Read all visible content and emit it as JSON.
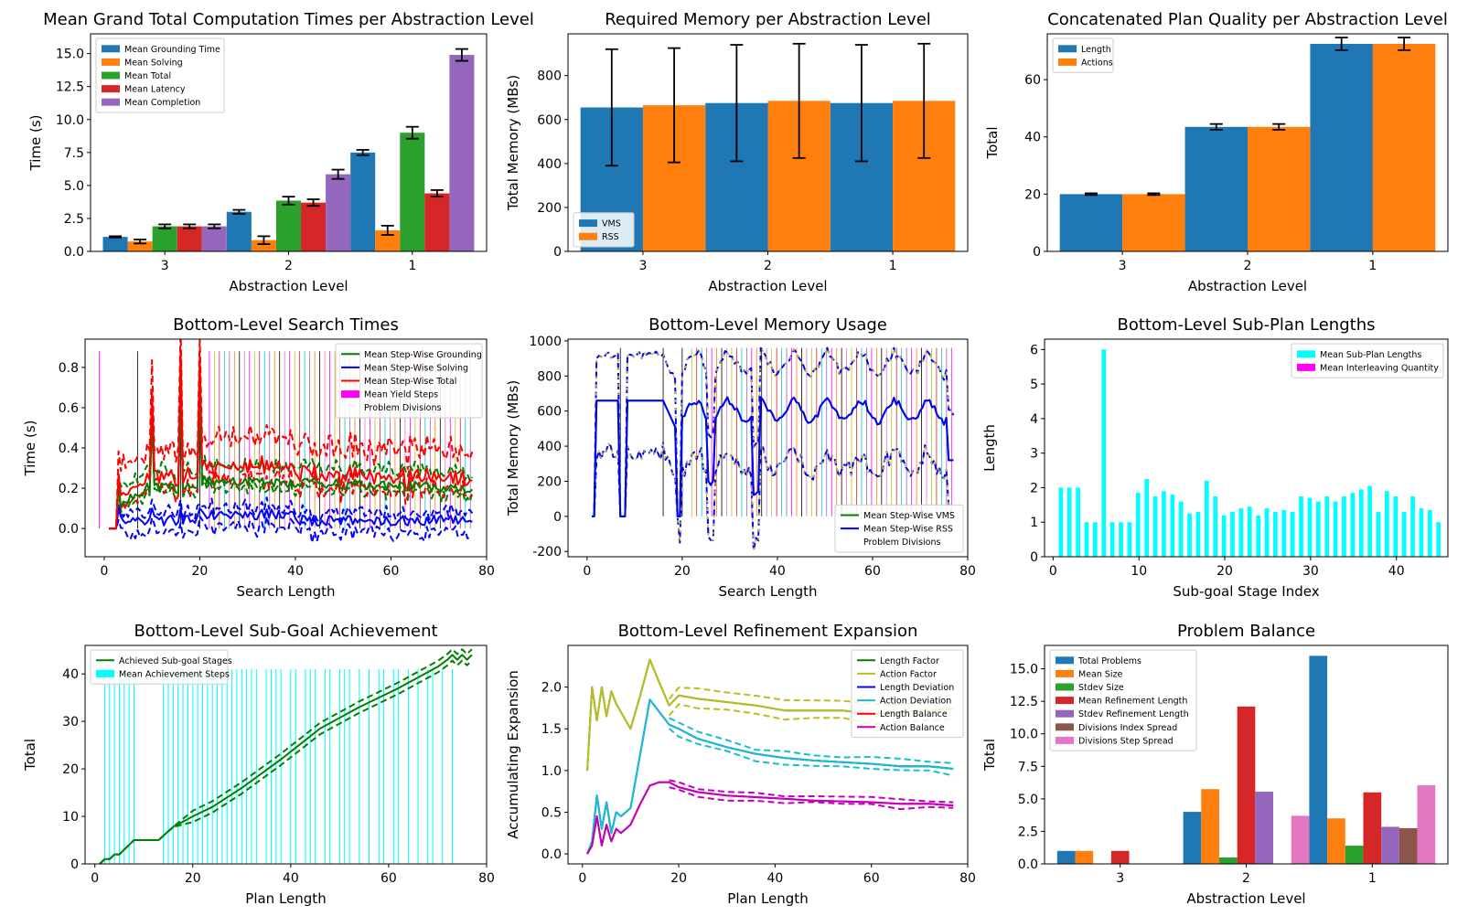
{
  "colors": {
    "blue": "#1f77b4",
    "orange": "#ff7f0e",
    "green": "#2ca02c",
    "red": "#d62728",
    "purple": "#9467bd",
    "brown": "#8c564b",
    "pink": "#e377c2",
    "line_green": "#008000",
    "line_blue": "#0000ff",
    "line_red": "#ff0000",
    "magenta": "#ff00ff",
    "cyan": "#00ffff",
    "olive": "#bcbd22",
    "tab_cyan": "#17becf",
    "line_magenta": "#c000c0"
  },
  "chart_data": [
    {
      "id": "c1",
      "type": "bar",
      "title": "Mean Grand Total Computation Times per Abstraction Level",
      "xlabel": "Abstraction Level",
      "ylabel": "Time (s)",
      "categories": [
        "3",
        "2",
        "1"
      ],
      "ylim": [
        0,
        16.5
      ],
      "yticks": [
        0.0,
        2.5,
        5.0,
        7.5,
        10.0,
        12.5,
        15.0
      ],
      "legend": "top-left",
      "series": [
        {
          "name": "Mean Grounding Time",
          "color": "#1f77b4",
          "values": [
            1.1,
            3.0,
            7.5
          ],
          "err": [
            0.05,
            0.15,
            0.2
          ]
        },
        {
          "name": "Mean Solving",
          "color": "#ff7f0e",
          "values": [
            0.75,
            0.85,
            1.6
          ],
          "err": [
            0.15,
            0.3,
            0.35
          ]
        },
        {
          "name": "Mean Total",
          "color": "#2ca02c",
          "values": [
            1.9,
            3.85,
            9.0
          ],
          "err": [
            0.15,
            0.3,
            0.45
          ]
        },
        {
          "name": "Mean Latency",
          "color": "#d62728",
          "values": [
            1.9,
            3.7,
            4.4
          ],
          "err": [
            0.15,
            0.25,
            0.25
          ]
        },
        {
          "name": "Mean Completion",
          "color": "#9467bd",
          "values": [
            1.9,
            5.85,
            14.9
          ],
          "err": [
            0.15,
            0.35,
            0.45
          ]
        }
      ]
    },
    {
      "id": "c2",
      "type": "bar",
      "title": "Required Memory per Abstraction Level",
      "xlabel": "Abstraction Level",
      "ylabel": "Total Memory (MBs)",
      "categories": [
        "3",
        "2",
        "1"
      ],
      "ylim": [
        0,
        990
      ],
      "yticks": [
        0,
        200,
        400,
        600,
        800
      ],
      "legend": "bottom-left",
      "series": [
        {
          "name": "VMS",
          "color": "#1f77b4",
          "values": [
            655,
            675,
            675
          ],
          "err": [
            265,
            265,
            265
          ]
        },
        {
          "name": "RSS",
          "color": "#ff7f0e",
          "values": [
            665,
            685,
            685
          ],
          "err": [
            260,
            260,
            260
          ]
        }
      ]
    },
    {
      "id": "c3",
      "type": "bar",
      "title": "Concatenated Plan Quality per Abstraction Level",
      "xlabel": "Abstraction Level",
      "ylabel": "Total",
      "categories": [
        "3",
        "2",
        "1"
      ],
      "ylim": [
        0,
        76
      ],
      "yticks": [
        0,
        20,
        40,
        60
      ],
      "legend": "top-left",
      "series": [
        {
          "name": "Length",
          "color": "#1f77b4",
          "values": [
            20,
            43.5,
            72.5
          ],
          "err": [
            0.3,
            1.0,
            2.2
          ]
        },
        {
          "name": "Actions",
          "color": "#ff7f0e",
          "values": [
            20,
            43.5,
            72.5
          ],
          "err": [
            0.3,
            1.0,
            2.2
          ]
        }
      ]
    },
    {
      "id": "c4",
      "type": "line",
      "title": "Bottom-Level Search Times",
      "xlabel": "Search Length",
      "ylabel": "Time (s)",
      "xlim": [
        -4,
        80
      ],
      "ylim": [
        -0.14,
        0.94
      ],
      "xticks": [
        0,
        20,
        40,
        60,
        80
      ],
      "yticks": [
        0.0,
        0.2,
        0.4,
        0.6,
        0.8
      ],
      "legend": "top-right",
      "series": [
        {
          "name": "Mean Step-Wise Grounding",
          "color": "#008000"
        },
        {
          "name": "Mean Step-Wise Solving",
          "color": "#0000ff"
        },
        {
          "name": "Mean Step-Wise Total",
          "color": "#ff0000"
        },
        {
          "name": "Mean Yield Steps",
          "color": "#ff00ff"
        },
        {
          "name": "Problem Divisions",
          "color": "none"
        }
      ]
    },
    {
      "id": "c5",
      "type": "line",
      "title": "Bottom-Level Memory Usage",
      "xlabel": "Search Length",
      "ylabel": "Total Memory (MBs)",
      "xlim": [
        -4,
        80
      ],
      "ylim": [
        -230,
        1010
      ],
      "xticks": [
        0,
        20,
        40,
        60,
        80
      ],
      "yticks": [
        -200,
        0,
        200,
        400,
        600,
        800,
        1000
      ],
      "legend": "bottom-right",
      "series": [
        {
          "name": "Mean Step-Wise VMS",
          "color": "#008000"
        },
        {
          "name": "Mean Step-Wise RSS",
          "color": "#0000ff"
        },
        {
          "name": "Problem Divisions",
          "color": "none"
        }
      ]
    },
    {
      "id": "c6",
      "type": "bar",
      "title": "Bottom-Level Sub-Plan Lengths",
      "xlabel": "Sub-goal Stage Index",
      "ylabel": "Length",
      "xlim": [
        -1,
        46
      ],
      "ylim": [
        0,
        6.3
      ],
      "xticks": [
        0,
        10,
        20,
        30,
        40
      ],
      "yticks": [
        0,
        1,
        2,
        3,
        4,
        5,
        6
      ],
      "legend": "top-right",
      "series": [
        {
          "name": "Mean Sub-Plan Lengths",
          "color": "#00ffff",
          "values": [
            2,
            2,
            2,
            1,
            1,
            6,
            1,
            1,
            1,
            1.85,
            2.25,
            1.75,
            1.9,
            1.8,
            1.6,
            1.25,
            1.3,
            2.2,
            1.75,
            1.2,
            1.3,
            1.4,
            1.45,
            1.2,
            1.4,
            1.3,
            1.35,
            1.3,
            1.75,
            1.7,
            1.6,
            1.75,
            1.6,
            1.75,
            1.85,
            1.95,
            2.05,
            1.3,
            1.9,
            1.75,
            1.3,
            1.75,
            1.4,
            1.35,
            1.0
          ]
        },
        {
          "name": "Mean Interleaving Quantity",
          "color": "#ff00ff",
          "values": []
        }
      ]
    },
    {
      "id": "c7",
      "type": "line",
      "title": "Bottom-Level Sub-Goal Achievement",
      "xlabel": "Plan Length",
      "ylabel": "Total",
      "xlim": [
        -2,
        80
      ],
      "ylim": [
        0,
        46
      ],
      "xticks": [
        0,
        20,
        40,
        60,
        80
      ],
      "yticks": [
        0,
        10,
        20,
        30,
        40
      ],
      "legend": "top-left",
      "series": [
        {
          "name": "Achieved Sub-goal Stages",
          "color": "#008000"
        },
        {
          "name": "Mean Achievement Steps",
          "color": "#00ffff"
        }
      ]
    },
    {
      "id": "c8",
      "type": "line",
      "title": "Bottom-Level Refinement Expansion",
      "xlabel": "Plan Length",
      "ylabel": "Accumulating Expansion",
      "xlim": [
        -3,
        80
      ],
      "ylim": [
        -0.12,
        2.5
      ],
      "xticks": [
        0,
        20,
        40,
        60,
        80
      ],
      "yticks": [
        0.0,
        0.5,
        1.0,
        1.5,
        2.0
      ],
      "legend": "top-right",
      "series": [
        {
          "name": "Length Factor",
          "color": "#008000"
        },
        {
          "name": "Action Factor",
          "color": "#bcbd22"
        },
        {
          "name": "Length Deviation",
          "color": "#0000ff"
        },
        {
          "name": "Action Deviation",
          "color": "#17becf"
        },
        {
          "name": "Length Balance",
          "color": "#ff0000"
        },
        {
          "name": "Action Balance",
          "color": "#c000c0"
        }
      ]
    },
    {
      "id": "c9",
      "type": "bar",
      "title": "Problem Balance",
      "xlabel": "Abstraction Level",
      "ylabel": "Total",
      "categories": [
        "3",
        "2",
        "1"
      ],
      "ylim": [
        0,
        16.8
      ],
      "yticks": [
        0.0,
        2.5,
        5.0,
        7.5,
        10.0,
        12.5,
        15.0
      ],
      "legend": "top-left",
      "series": [
        {
          "name": "Total Problems",
          "color": "#1f77b4",
          "values": [
            1,
            4,
            16
          ]
        },
        {
          "name": "Mean Size",
          "color": "#ff7f0e",
          "values": [
            1,
            5.75,
            3.5
          ]
        },
        {
          "name": "Stdev Size",
          "color": "#2ca02c",
          "values": [
            0,
            0.5,
            1.4
          ]
        },
        {
          "name": "Mean Refinement Length",
          "color": "#d62728",
          "values": [
            1,
            12.1,
            5.5
          ]
        },
        {
          "name": "Stdev Refinement Length",
          "color": "#9467bd",
          "values": [
            0,
            5.55,
            2.85
          ]
        },
        {
          "name": "Divisions Index Spread",
          "color": "#8c564b",
          "values": [
            0,
            0,
            2.75
          ]
        },
        {
          "name": "Divisions Step Spread",
          "color": "#e377c2",
          "values": [
            0,
            3.7,
            6.05
          ]
        }
      ]
    }
  ]
}
